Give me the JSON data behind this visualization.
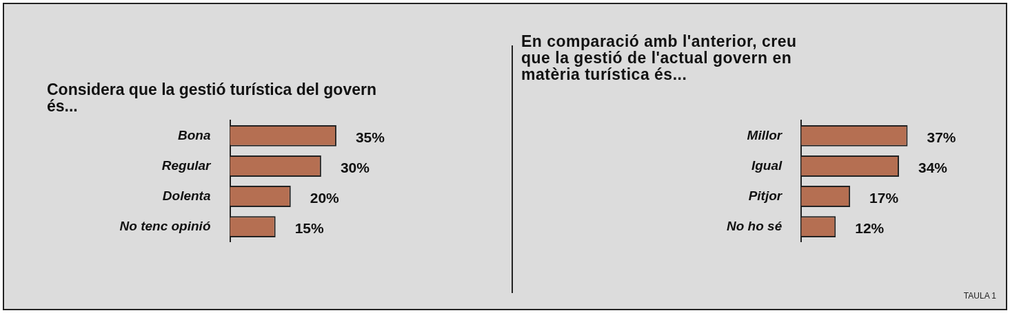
{
  "chart_data": [
    {
      "type": "bar",
      "orientation": "horizontal",
      "title": "Considera que la gestió turística del govern és...",
      "categories": [
        "Bona",
        "Regular",
        "Dolenta",
        "No tenc opinió"
      ],
      "values": [
        35,
        30,
        20,
        15
      ],
      "value_labels": [
        "35%",
        "30%",
        "20%",
        "15%"
      ],
      "color": "#b56f52"
    },
    {
      "type": "bar",
      "orientation": "horizontal",
      "title": "En comparació amb l'anterior, creu que la gestió de l'actual govern en matèria turística és...",
      "categories": [
        "Millor",
        "Igual",
        "Pitjor",
        "No ho sé"
      ],
      "values": [
        37,
        34,
        17,
        12
      ],
      "value_labels": [
        "37%",
        "34%",
        "17%",
        "12%"
      ],
      "color": "#b56f52",
      "annotations": [
        "TAULA 1"
      ]
    }
  ]
}
